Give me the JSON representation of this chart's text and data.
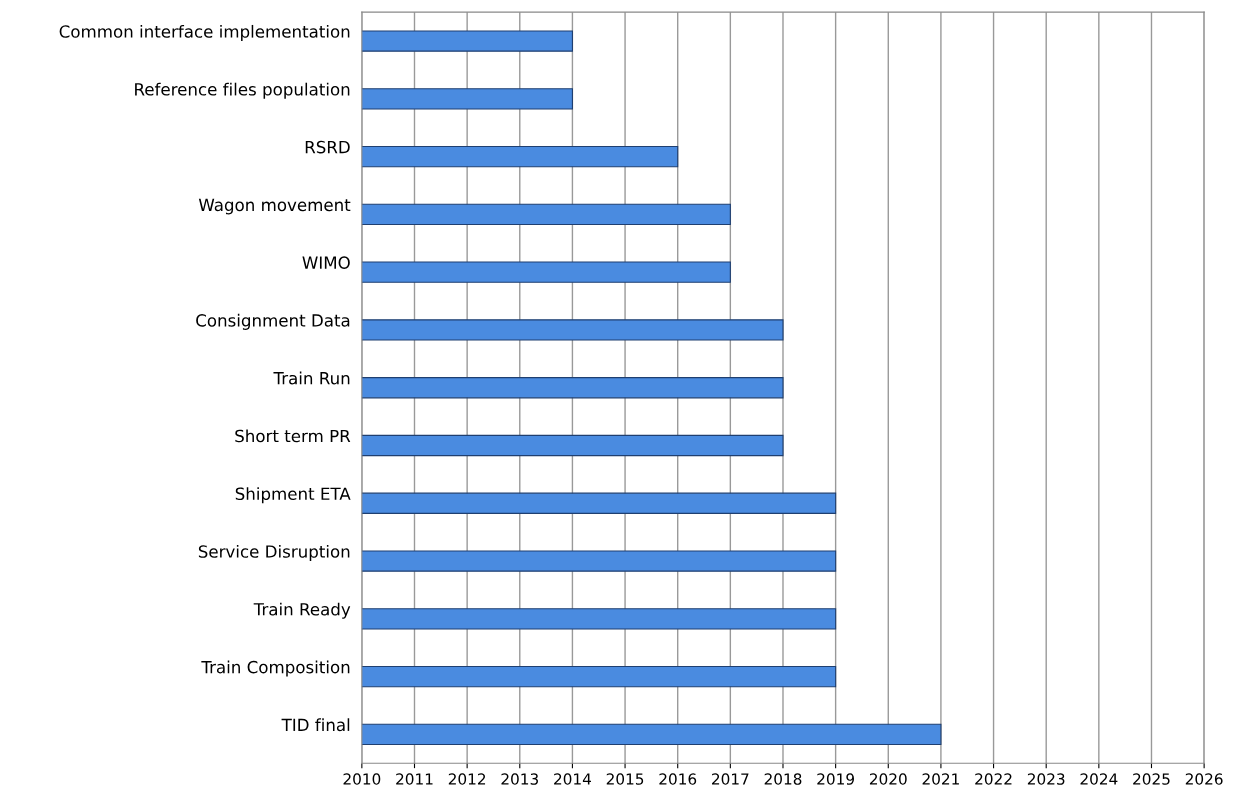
{
  "chart_data": {
    "type": "bar",
    "orientation": "horizontal",
    "categories": [
      "Common interface implementation",
      "Reference files population",
      "RSRD",
      "Wagon movement",
      "WIMO",
      "Consignment Data",
      "Train Run",
      "Short term PR",
      "Shipment ETA",
      "Service Disruption",
      "Train Ready",
      "Train Composition",
      "TID final"
    ],
    "values": [
      2014,
      2014,
      2016,
      2017,
      2017,
      2018,
      2018,
      2018,
      2019,
      2019,
      2019,
      2019,
      2021
    ],
    "color": "#4a8be0",
    "xlim": [
      2010,
      2026
    ],
    "xticks": [
      2010,
      2011,
      2012,
      2013,
      2014,
      2015,
      2016,
      2017,
      2018,
      2019,
      2020,
      2021,
      2022,
      2023,
      2024,
      2025,
      2026
    ],
    "grid": "x"
  }
}
